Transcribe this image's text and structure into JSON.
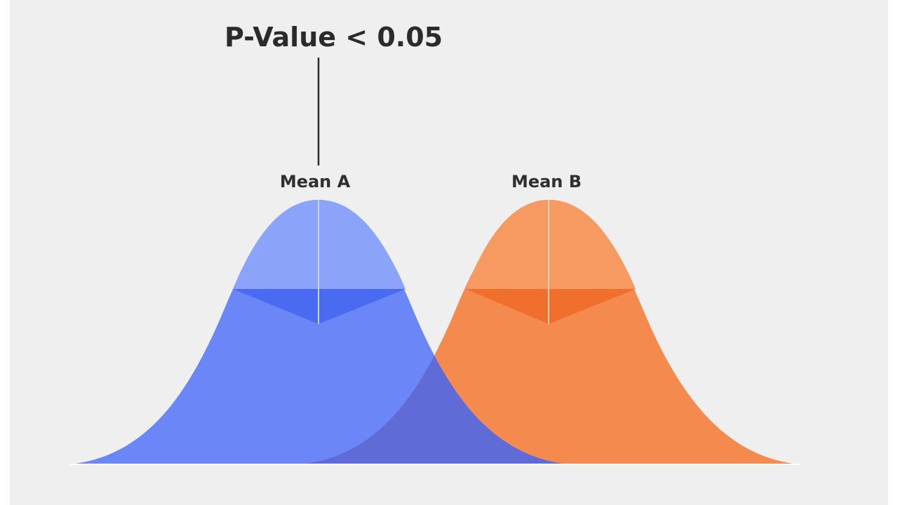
{
  "title": "P-Value < 0.05",
  "distributions": [
    {
      "label": "Mean A",
      "color": "#6b87f7",
      "top_color": "#8ba3f8",
      "band_color": "#4a6af2"
    },
    {
      "label": "Mean B",
      "color": "#f58a4e",
      "top_color": "#f79a62",
      "band_color": "#f06f2c"
    }
  ],
  "overlap_color": "#5f6bd6",
  "background_color": "#efefef"
}
